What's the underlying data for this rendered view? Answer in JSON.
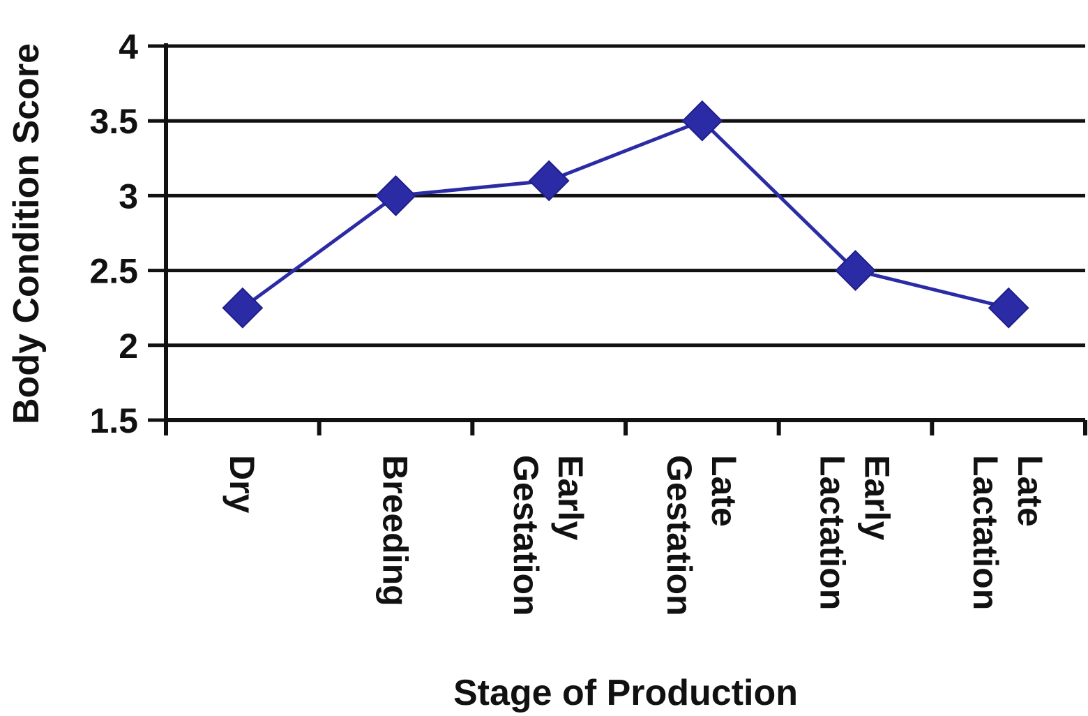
{
  "chart_data": {
    "type": "line",
    "title": "",
    "xlabel": "Stage of Production",
    "ylabel": "Body Condition Score",
    "ylim": [
      1.5,
      4
    ],
    "yticks": [
      "1.5",
      "2",
      "2.5",
      "3",
      "3.5",
      "4"
    ],
    "grid": "horizontal",
    "legend": "none",
    "categories": [
      [
        "Dry"
      ],
      [
        "Breeding"
      ],
      [
        "Early",
        "Gestation"
      ],
      [
        "Late",
        "Gestation"
      ],
      [
        "Early",
        "Lactation"
      ],
      [
        "Late",
        "Lactation"
      ]
    ],
    "series": [
      {
        "values": [
          2.25,
          3.0,
          3.1,
          3.5,
          2.5,
          2.25
        ],
        "color": "#2b2ba6",
        "marker": "diamond"
      }
    ]
  }
}
